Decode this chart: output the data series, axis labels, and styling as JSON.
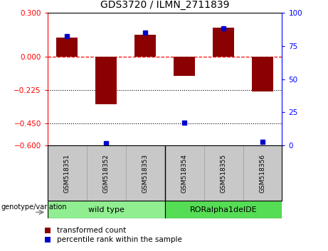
{
  "title": "GDS3720 / ILMN_2711839",
  "samples": [
    "GSM518351",
    "GSM518352",
    "GSM518353",
    "GSM518354",
    "GSM518355",
    "GSM518356"
  ],
  "transformed_count": [
    0.13,
    -0.32,
    0.15,
    -0.13,
    0.2,
    -0.235
  ],
  "percentile_rank": [
    82,
    2,
    85,
    17,
    88,
    3
  ],
  "ylim_left": [
    -0.6,
    0.3
  ],
  "ylim_right": [
    0,
    100
  ],
  "yticks_left": [
    0.3,
    0,
    -0.225,
    -0.45,
    -0.6
  ],
  "yticks_right": [
    100,
    75,
    50,
    25,
    0
  ],
  "hlines": [
    -0.225,
    -0.45
  ],
  "groups": [
    {
      "label": "wild type",
      "color": "#90EE90"
    },
    {
      "label": "RORalpha1delDE",
      "color": "#55DD55"
    }
  ],
  "bar_color": "#8B0000",
  "dot_color": "#0000CD",
  "bar_width": 0.55,
  "background_color": "#ffffff",
  "plot_bg_color": "#ffffff",
  "sample_bg_color": "#C8C8C8",
  "legend_red_label": "transformed count",
  "legend_blue_label": "percentile rank within the sample",
  "genotype_label": "genotype/variation"
}
